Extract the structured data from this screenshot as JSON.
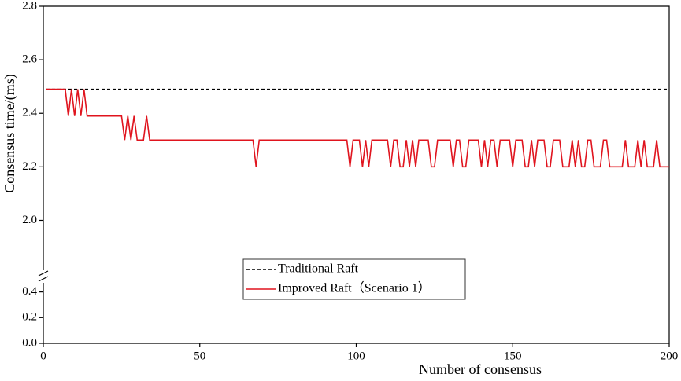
{
  "chart_data": {
    "type": "line",
    "xlabel": "Number of consensus",
    "ylabel": "Consensus time/(ms)",
    "xlim": [
      0,
      200
    ],
    "xticks": [
      0,
      50,
      100,
      150,
      200
    ],
    "ylim": [
      0,
      2.8
    ],
    "ybreak": [
      0.52,
      1.79
    ],
    "yticks": [
      {
        "value": 0,
        "label": "0.0"
      },
      0.2,
      0.4,
      {
        "value": 2,
        "label": "2.0"
      },
      2.2,
      2.4,
      2.6,
      2.8
    ],
    "legend": "bottom-center",
    "series": [
      {
        "name": "Traditional Raft",
        "color": "#000000",
        "dash": true,
        "x": [
          1,
          200
        ],
        "values": [
          2.49,
          2.49
        ]
      },
      {
        "name": "Improved Raft（Scenario 1）",
        "color": "#e0141e",
        "x": [
          1,
          2,
          3,
          4,
          5,
          6,
          7,
          8,
          9,
          10,
          11,
          12,
          13,
          14,
          15,
          16,
          17,
          18,
          19,
          20,
          21,
          22,
          23,
          24,
          25,
          26,
          27,
          28,
          29,
          30,
          31,
          32,
          33,
          34,
          35,
          36,
          37,
          38,
          39,
          40,
          41,
          42,
          43,
          44,
          45,
          46,
          47,
          48,
          49,
          50,
          51,
          52,
          53,
          54,
          55,
          56,
          57,
          58,
          59,
          60,
          61,
          62,
          63,
          64,
          65,
          66,
          67,
          68,
          69,
          70,
          71,
          72,
          73,
          74,
          75,
          76,
          77,
          78,
          79,
          80,
          81,
          82,
          83,
          84,
          85,
          86,
          87,
          88,
          89,
          90,
          91,
          92,
          93,
          94,
          95,
          96,
          97,
          98,
          99,
          100,
          101,
          102,
          103,
          104,
          105,
          106,
          107,
          108,
          109,
          110,
          111,
          112,
          113,
          114,
          115,
          116,
          117,
          118,
          119,
          120,
          121,
          122,
          123,
          124,
          125,
          126,
          127,
          128,
          129,
          130,
          131,
          132,
          133,
          134,
          135,
          136,
          137,
          138,
          139,
          140,
          141,
          142,
          143,
          144,
          145,
          146,
          147,
          148,
          149,
          150,
          151,
          152,
          153,
          154,
          155,
          156,
          157,
          158,
          159,
          160,
          161,
          162,
          163,
          164,
          165,
          166,
          167,
          168,
          169,
          170,
          171,
          172,
          173,
          174,
          175,
          176,
          177,
          178,
          179,
          180,
          181,
          182,
          183,
          184,
          185,
          186,
          187,
          188,
          189,
          190,
          191,
          192,
          193,
          194,
          195,
          196,
          197,
          198,
          199,
          200
        ],
        "values": [
          2.49,
          2.49,
          2.49,
          2.49,
          2.49,
          2.49,
          2.49,
          2.39,
          2.49,
          2.39,
          2.49,
          2.39,
          2.49,
          2.39,
          2.39,
          2.39,
          2.39,
          2.39,
          2.39,
          2.39,
          2.39,
          2.39,
          2.39,
          2.39,
          2.39,
          2.3,
          2.39,
          2.3,
          2.39,
          2.3,
          2.3,
          2.3,
          2.39,
          2.3,
          2.3,
          2.3,
          2.3,
          2.3,
          2.3,
          2.3,
          2.3,
          2.3,
          2.3,
          2.3,
          2.3,
          2.3,
          2.3,
          2.3,
          2.3,
          2.3,
          2.3,
          2.3,
          2.3,
          2.3,
          2.3,
          2.3,
          2.3,
          2.3,
          2.3,
          2.3,
          2.3,
          2.3,
          2.3,
          2.3,
          2.3,
          2.3,
          2.3,
          2.2,
          2.3,
          2.3,
          2.3,
          2.3,
          2.3,
          2.3,
          2.3,
          2.3,
          2.3,
          2.3,
          2.3,
          2.3,
          2.3,
          2.3,
          2.3,
          2.3,
          2.3,
          2.3,
          2.3,
          2.3,
          2.3,
          2.3,
          2.3,
          2.3,
          2.3,
          2.3,
          2.3,
          2.3,
          2.3,
          2.2,
          2.3,
          2.3,
          2.3,
          2.2,
          2.3,
          2.2,
          2.3,
          2.3,
          2.3,
          2.3,
          2.3,
          2.3,
          2.2,
          2.3,
          2.3,
          2.2,
          2.2,
          2.3,
          2.2,
          2.3,
          2.2,
          2.3,
          2.3,
          2.3,
          2.3,
          2.2,
          2.2,
          2.3,
          2.3,
          2.3,
          2.3,
          2.3,
          2.2,
          2.3,
          2.3,
          2.2,
          2.2,
          2.3,
          2.3,
          2.3,
          2.3,
          2.2,
          2.3,
          2.2,
          2.3,
          2.3,
          2.2,
          2.3,
          2.3,
          2.3,
          2.3,
          2.2,
          2.3,
          2.3,
          2.3,
          2.2,
          2.2,
          2.3,
          2.2,
          2.3,
          2.3,
          2.3,
          2.2,
          2.2,
          2.3,
          2.3,
          2.3,
          2.2,
          2.2,
          2.2,
          2.3,
          2.2,
          2.3,
          2.2,
          2.2,
          2.3,
          2.3,
          2.2,
          2.2,
          2.2,
          2.3,
          2.3,
          2.2,
          2.2,
          2.2,
          2.2,
          2.2,
          2.3,
          2.2,
          2.2,
          2.2,
          2.3,
          2.2,
          2.3,
          2.2,
          2.2,
          2.2,
          2.3,
          2.2,
          2.2,
          2.2,
          2.2
        ]
      }
    ]
  }
}
